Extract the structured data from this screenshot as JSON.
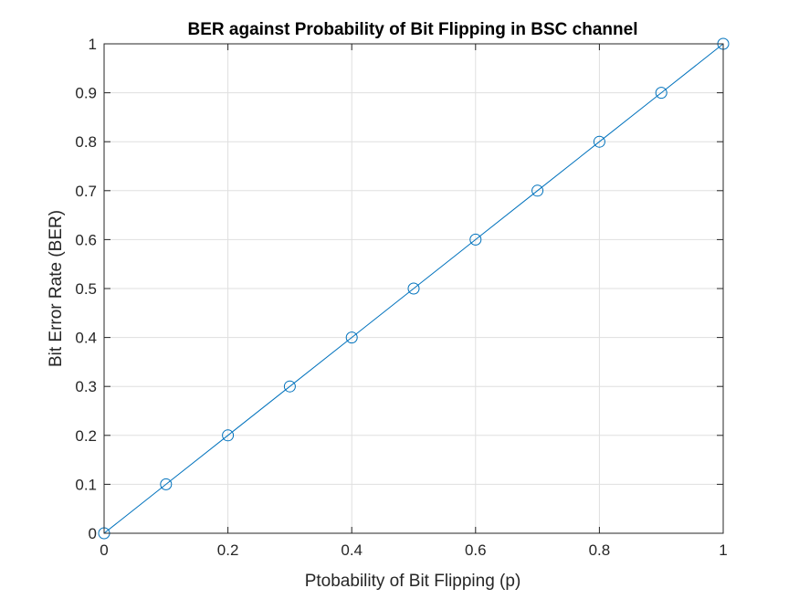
{
  "chart_data": {
    "type": "line",
    "title": "BER against Probability of Bit Flipping in BSC channel",
    "xlabel": "Ptobability of Bit Flipping (p)",
    "ylabel": "Bit Error Rate (BER)",
    "xlim": [
      0,
      1
    ],
    "ylim": [
      0,
      1
    ],
    "xticks": [
      0,
      0.2,
      0.4,
      0.6,
      0.8,
      1
    ],
    "xtick_labels": [
      "0",
      "0.2",
      "0.4",
      "0.6",
      "0.8",
      "1"
    ],
    "yticks": [
      0,
      0.1,
      0.2,
      0.3,
      0.4,
      0.5,
      0.6,
      0.7,
      0.8,
      0.9,
      1
    ],
    "ytick_labels": [
      "0",
      "0.1",
      "0.2",
      "0.3",
      "0.4",
      "0.5",
      "0.6",
      "0.7",
      "0.8",
      "0.9",
      "1"
    ],
    "grid": true,
    "marker": "circle",
    "series": [
      {
        "x": [
          0,
          0.1,
          0.2,
          0.3,
          0.4,
          0.5,
          0.6,
          0.7,
          0.8,
          0.9,
          1
        ],
        "y": [
          0,
          0.1,
          0.2,
          0.3,
          0.4,
          0.5,
          0.6,
          0.7,
          0.8,
          0.9,
          1
        ],
        "color": "#0072BD"
      }
    ]
  }
}
